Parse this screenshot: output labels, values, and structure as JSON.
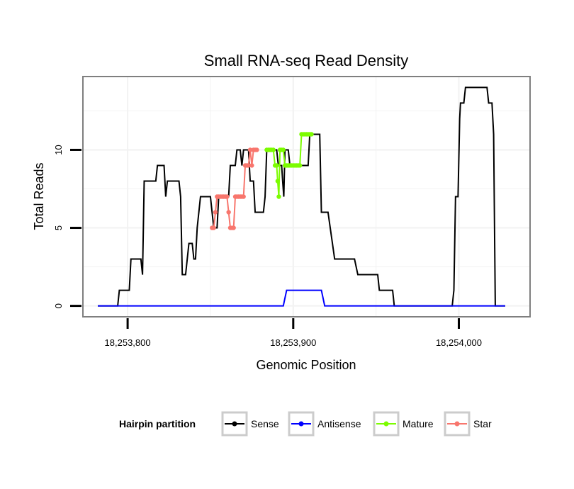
{
  "chart_data": {
    "type": "line",
    "title": "Small RNA-seq Read Density",
    "xlabel": "Genomic Position",
    "ylabel": "Total Reads",
    "xlim": [
      18253773,
      18254043
    ],
    "ylim": [
      -0.7,
      14.7
    ],
    "x_ticks": [
      {
        "value": 18253800,
        "label": "18,253,800"
      },
      {
        "value": 18253900,
        "label": "18,253,900"
      },
      {
        "value": 18254000,
        "label": "18,254,000"
      }
    ],
    "y_ticks": [
      {
        "value": 0,
        "label": "0"
      },
      {
        "value": 5,
        "label": "5"
      },
      {
        "value": 10,
        "label": "10"
      }
    ],
    "grid": true,
    "legend": {
      "title": "Hairpin partition",
      "position": "bottom",
      "entries": [
        {
          "name": "Sense",
          "color": "#000000"
        },
        {
          "name": "Antisense",
          "color": "#0000ff"
        },
        {
          "name": "Mature",
          "color": "#7cfc00"
        },
        {
          "name": "Star",
          "color": "#f8766d"
        }
      ]
    },
    "series": [
      {
        "name": "Sense",
        "color": "#000000",
        "points": [
          [
            18253782,
            0
          ],
          [
            18253794,
            0
          ],
          [
            18253795,
            1
          ],
          [
            18253801,
            1
          ],
          [
            18253802,
            3
          ],
          [
            18253808,
            3
          ],
          [
            18253809,
            2
          ],
          [
            18253810,
            8
          ],
          [
            18253817,
            8
          ],
          [
            18253818,
            9
          ],
          [
            18253822,
            9
          ],
          [
            18253823,
            7
          ],
          [
            18253824,
            8
          ],
          [
            18253831,
            8
          ],
          [
            18253832,
            7
          ],
          [
            18253833,
            2
          ],
          [
            18253835,
            2
          ],
          [
            18253836,
            3
          ],
          [
            18253837,
            4
          ],
          [
            18253839,
            4
          ],
          [
            18253840,
            3
          ],
          [
            18253841,
            3
          ],
          [
            18253842,
            5
          ],
          [
            18253843,
            6
          ],
          [
            18253844,
            7
          ],
          [
            18253850,
            7
          ],
          [
            18253851,
            6
          ],
          [
            18253852,
            5
          ],
          [
            18253854,
            5
          ],
          [
            18253855,
            7
          ],
          [
            18253861,
            7
          ],
          [
            18253862,
            9
          ],
          [
            18253865,
            9
          ],
          [
            18253866,
            10
          ],
          [
            18253868,
            10
          ],
          [
            18253869,
            9
          ],
          [
            18253870,
            10
          ],
          [
            18253873,
            10
          ],
          [
            18253874,
            8
          ],
          [
            18253876,
            8
          ],
          [
            18253877,
            6
          ],
          [
            18253882,
            6
          ],
          [
            18253883,
            7
          ],
          [
            18253884,
            10
          ],
          [
            18253890,
            10
          ],
          [
            18253891,
            9
          ],
          [
            18253893,
            9
          ],
          [
            18253893.6,
            8
          ],
          [
            18253894.3,
            7
          ],
          [
            18253895,
            10
          ],
          [
            18253897,
            10
          ],
          [
            18253898,
            9
          ],
          [
            18253909,
            9
          ],
          [
            18253910,
            11
          ],
          [
            18253916,
            11
          ],
          [
            18253917,
            6
          ],
          [
            18253921,
            6
          ],
          [
            18253925,
            3
          ],
          [
            18253937,
            3
          ],
          [
            18253939,
            2
          ],
          [
            18253951,
            2
          ],
          [
            18253952,
            1
          ],
          [
            18253960,
            1
          ],
          [
            18253961,
            0
          ],
          [
            18253996,
            0
          ],
          [
            18253997,
            1
          ],
          [
            18253998,
            7
          ],
          [
            18253999.5,
            7
          ],
          [
            18254000.5,
            12
          ],
          [
            18254001,
            13
          ],
          [
            18254003,
            13
          ],
          [
            18254004,
            14
          ],
          [
            18254017,
            14
          ],
          [
            18254018,
            13
          ],
          [
            18254020,
            13
          ],
          [
            18254021,
            11
          ],
          [
            18254022,
            0
          ],
          [
            18254028,
            0
          ]
        ]
      },
      {
        "name": "Antisense",
        "color": "#0000ff",
        "points": [
          [
            18253782,
            0
          ],
          [
            18253894,
            0
          ],
          [
            18253896,
            1
          ],
          [
            18253917,
            1
          ],
          [
            18253919,
            0
          ],
          [
            18254028,
            0
          ]
        ]
      },
      {
        "name": "Star",
        "color": "#f8766d",
        "points": [
          [
            18253851,
            5
          ],
          [
            18253852,
            5
          ],
          [
            18253853,
            6
          ],
          [
            18253854,
            7
          ],
          [
            18253855,
            7
          ],
          [
            18253856,
            7
          ],
          [
            18253857,
            7
          ],
          [
            18253858,
            7
          ],
          [
            18253859,
            7
          ],
          [
            18253860,
            7
          ],
          [
            18253861,
            6
          ],
          [
            18253862,
            5
          ],
          [
            18253863,
            5
          ],
          [
            18253864,
            5
          ],
          [
            18253865,
            7
          ],
          [
            18253866,
            7
          ],
          [
            18253867,
            7
          ],
          [
            18253868,
            7
          ],
          [
            18253869,
            7
          ],
          [
            18253870,
            7
          ],
          [
            18253871,
            9
          ],
          [
            18253872,
            9
          ],
          [
            18253873,
            9
          ],
          [
            18253874,
            10
          ],
          [
            18253875,
            9
          ],
          [
            18253876,
            10
          ],
          [
            18253877,
            10
          ],
          [
            18253878,
            10
          ]
        ]
      },
      {
        "name": "Mature",
        "color": "#7cfc00",
        "points": [
          [
            18253884,
            10
          ],
          [
            18253885,
            10
          ],
          [
            18253886,
            10
          ],
          [
            18253887,
            10
          ],
          [
            18253888,
            10
          ],
          [
            18253889,
            9
          ],
          [
            18253890,
            9
          ],
          [
            18253890.6,
            8
          ],
          [
            18253891.3,
            7
          ],
          [
            18253892,
            10
          ],
          [
            18253893,
            10
          ],
          [
            18253894,
            10
          ],
          [
            18253895,
            9
          ],
          [
            18253896,
            9
          ],
          [
            18253897,
            9
          ],
          [
            18253898,
            9
          ],
          [
            18253899,
            9
          ],
          [
            18253900,
            9
          ],
          [
            18253901,
            9
          ],
          [
            18253902,
            9
          ],
          [
            18253903,
            9
          ],
          [
            18253904,
            9
          ],
          [
            18253905,
            11
          ],
          [
            18253906,
            11
          ],
          [
            18253907,
            11
          ],
          [
            18253908,
            11
          ],
          [
            18253909,
            11
          ],
          [
            18253910,
            11
          ],
          [
            18253911,
            11
          ]
        ]
      }
    ]
  }
}
